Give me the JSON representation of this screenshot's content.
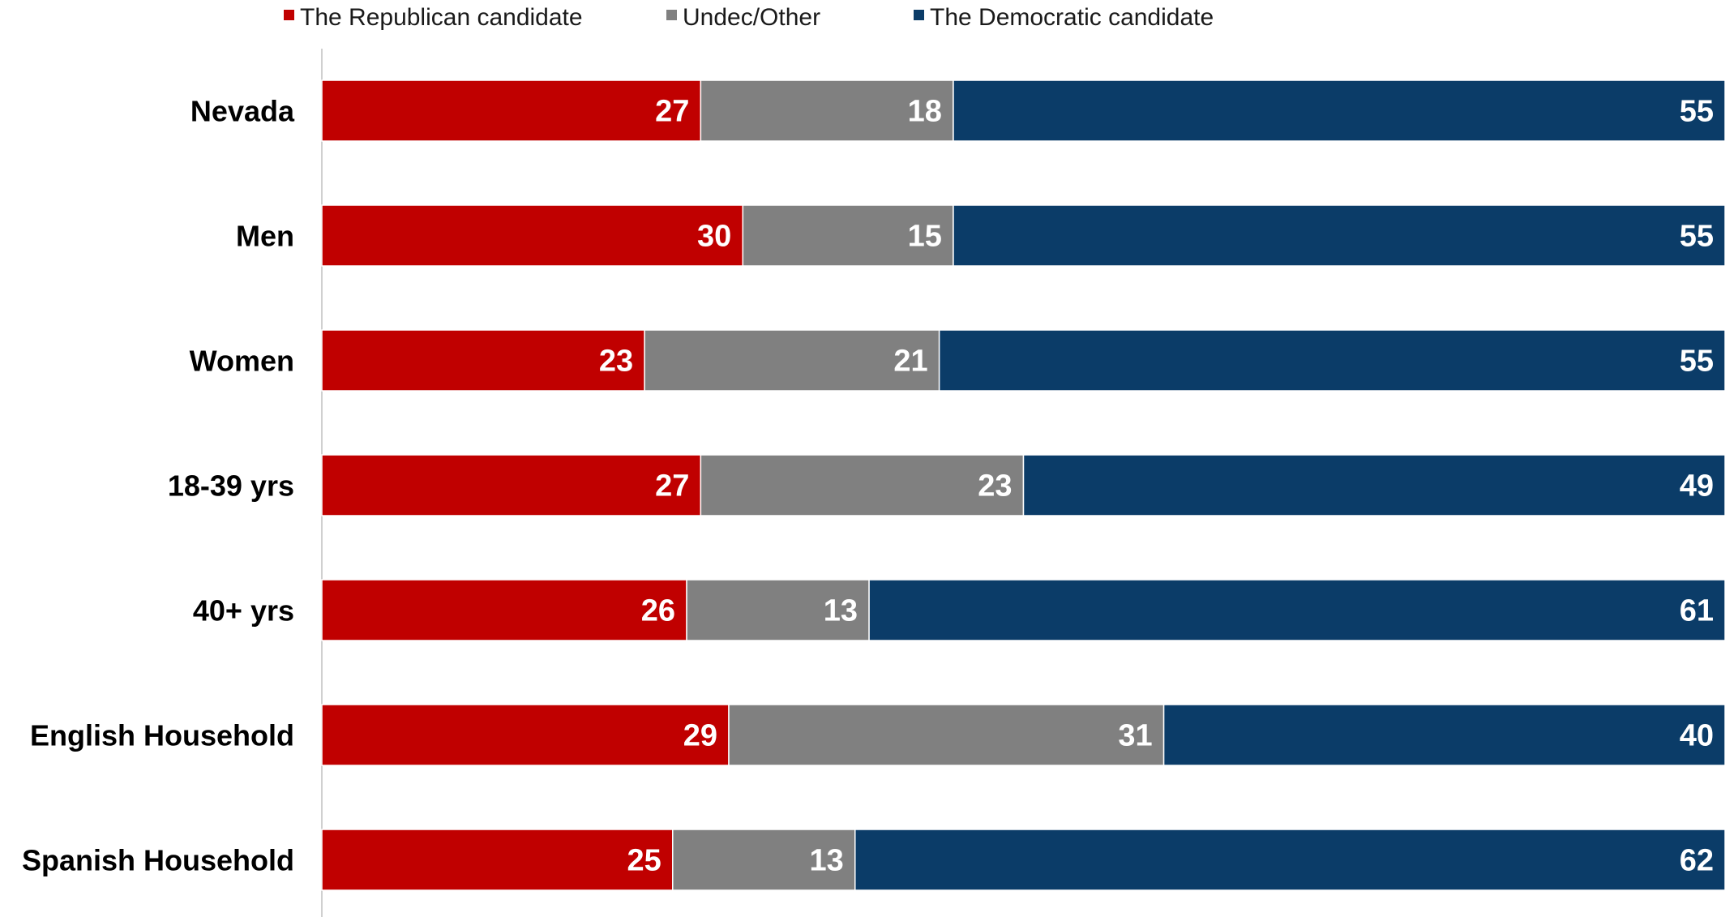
{
  "chart_data": {
    "type": "bar",
    "orientation": "horizontal",
    "stacked": true,
    "categories": [
      "Nevada",
      "Men",
      "Women",
      "18-39 yrs",
      "40+ yrs",
      "English Household",
      "Spanish Household"
    ],
    "series": [
      {
        "name": "The Republican candidate",
        "color": "#c00000",
        "values": [
          27,
          30,
          23,
          27,
          26,
          29,
          25
        ]
      },
      {
        "name": "Undec/Other",
        "color": "#808080",
        "values": [
          18,
          15,
          21,
          23,
          13,
          31,
          13
        ]
      },
      {
        "name": "The Democratic candidate",
        "color": "#0b3c68",
        "values": [
          55,
          55,
          55,
          49,
          61,
          40,
          62
        ]
      }
    ],
    "xlim": [
      0,
      100
    ],
    "legend_position": "top",
    "grid": false
  }
}
